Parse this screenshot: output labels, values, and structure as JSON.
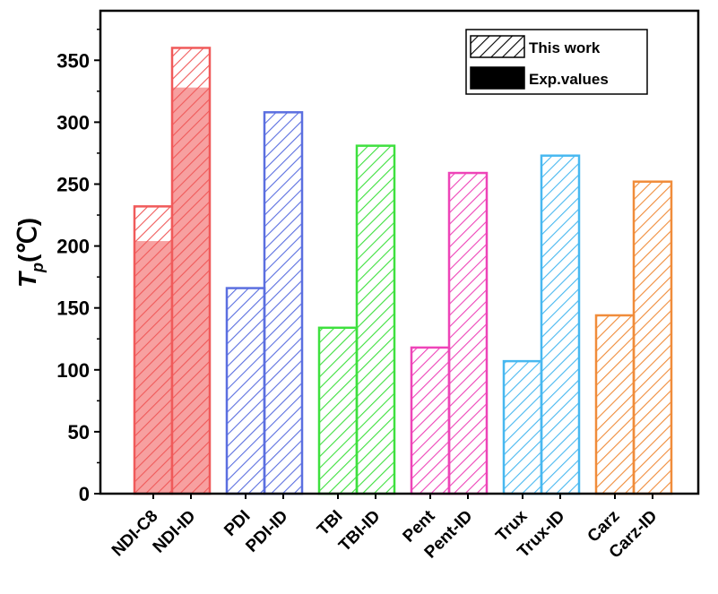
{
  "chart_data": {
    "type": "bar",
    "categories": [
      "NDI-C8",
      "NDI-ID",
      "PDI",
      "PDI-ID",
      "TBI",
      "TBI-ID",
      "Pent",
      "Pent-ID",
      "Trux",
      "Trux-ID",
      "Carz",
      "Carz-ID"
    ],
    "series": [
      {
        "name": "This work",
        "values": [
          232,
          360,
          166,
          308,
          134,
          281,
          118,
          259,
          107,
          273,
          144,
          252
        ]
      },
      {
        "name": "Exp.values",
        "values": [
          204,
          328,
          null,
          null,
          null,
          null,
          null,
          null,
          null,
          null,
          null,
          null
        ]
      }
    ],
    "colors": [
      "#f05a5a",
      "#f05a5a",
      "#5b6fe0",
      "#5b6fe0",
      "#3ee03e",
      "#3ee03e",
      "#ee44b8",
      "#ee44b8",
      "#48b8f0",
      "#48b8f0",
      "#f08c3a",
      "#f08c3a"
    ],
    "exp_fill_color": "#f7a0a0",
    "ylabel_main": "T",
    "ylabel_sub": "p",
    "ylabel_unit": "(℃)",
    "ylim": [
      0,
      390
    ],
    "yticks": [
      0,
      50,
      100,
      150,
      200,
      250,
      300,
      350
    ],
    "legend": {
      "position": "top-right",
      "items": [
        {
          "label": "This work",
          "style": "hatch"
        },
        {
          "label": "Exp.values",
          "style": "solid"
        }
      ]
    },
    "grid": false
  }
}
